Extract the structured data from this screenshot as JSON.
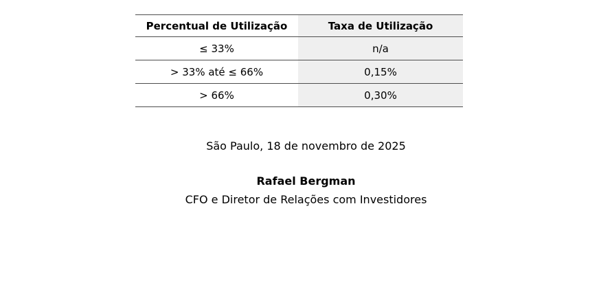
{
  "table": {
    "columns": [
      "Percentual de Utilização",
      "Taxa de Utilização"
    ],
    "rows": [
      {
        "percentual": "≤ 33%",
        "taxa": "n/a"
      },
      {
        "percentual": "> 33% até ≤ 66%",
        "taxa": "0,15%"
      },
      {
        "percentual": "> 66%",
        "taxa": "0,30%"
      }
    ]
  },
  "footer": {
    "dateline": "São Paulo, 18 de novembro de 2025",
    "signer_name": "Rafael Bergman",
    "signer_title": "CFO e Diretor de Relações com Investidores"
  },
  "colors": {
    "page_bg": "#ffffff",
    "text": "#000000",
    "rule": "#4d4d4d",
    "shaded_column_bg": "#efefef"
  }
}
